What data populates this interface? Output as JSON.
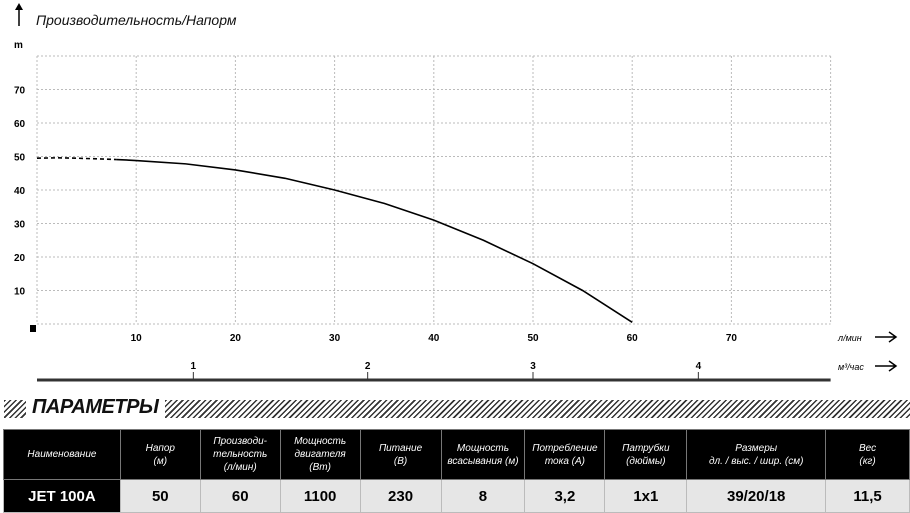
{
  "chart_data": {
    "type": "line",
    "title": "Производительность/Напорм",
    "ylabel": "m",
    "xlabel": "л/мин",
    "x2label": "м³/час",
    "xlim": [
      0,
      80
    ],
    "ylim": [
      0,
      80
    ],
    "xticks": [
      10,
      20,
      30,
      40,
      50,
      60,
      70
    ],
    "yticks": [
      10,
      20,
      30,
      40,
      50,
      60,
      70
    ],
    "x2ticks": [
      1,
      2,
      3,
      4
    ],
    "grid": true,
    "series": [
      {
        "style": "dashed",
        "x": [
          0,
          2,
          4,
          6,
          8
        ],
        "y": [
          49.5,
          49.6,
          49.5,
          49.3,
          49.1
        ]
      },
      {
        "style": "solid",
        "x": [
          8,
          10,
          15,
          20,
          25,
          30,
          35,
          40,
          45,
          50,
          55,
          60
        ],
        "y": [
          49.1,
          48.8,
          47.8,
          46,
          43.5,
          40,
          36,
          31,
          25,
          18,
          10,
          0.5
        ]
      }
    ]
  },
  "section": {
    "title": "ПАРАМЕТРЫ"
  },
  "table": {
    "headers": [
      [
        "Наименование"
      ],
      [
        "Напор",
        "(м)"
      ],
      [
        "Производи-",
        "тельность",
        "(л/мин)"
      ],
      [
        "Мощность",
        "двигателя",
        "(Вт)"
      ],
      [
        "Питание",
        "(В)"
      ],
      [
        "Мощность",
        "всасывания (м)"
      ],
      [
        "Потребление",
        "тока (А)"
      ],
      [
        "Патрубки",
        "(дюймы)"
      ],
      [
        "Размеры",
        "дл. / выс. / шир. (см)"
      ],
      [
        "Вес",
        "(кг)"
      ]
    ],
    "rows": [
      [
        "JET 100A",
        "50",
        "60",
        "1100",
        "230",
        "8",
        "3,2",
        "1x1",
        "39/20/18",
        "11,5"
      ]
    ]
  }
}
